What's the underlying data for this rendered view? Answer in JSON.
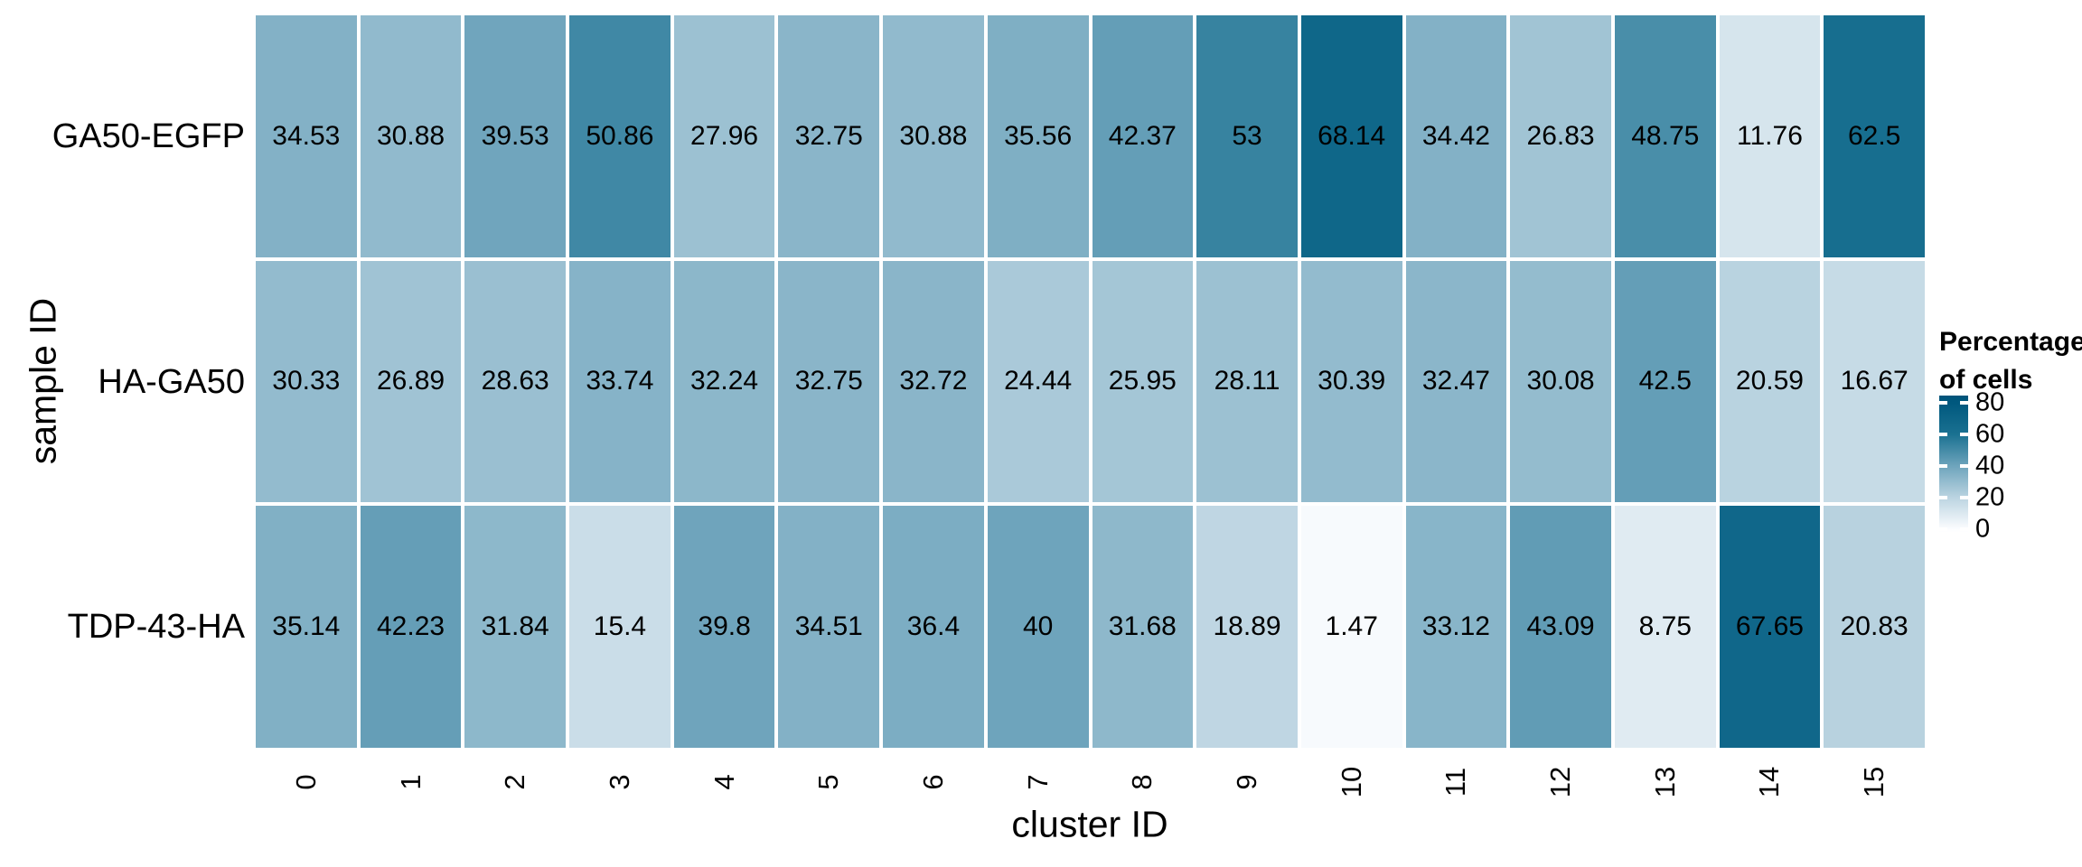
{
  "chart_data": {
    "type": "heatmap",
    "title": "",
    "xlabel": "cluster ID",
    "ylabel": "sample ID",
    "x_categories": [
      "0",
      "1",
      "2",
      "3",
      "4",
      "5",
      "6",
      "7",
      "8",
      "9",
      "10",
      "11",
      "12",
      "13",
      "14",
      "15"
    ],
    "y_categories": [
      "GA50-EGFP",
      "HA-GA50",
      "TDP-43-HA"
    ],
    "series": [
      {
        "name": "GA50-EGFP",
        "values": [
          34.53,
          30.88,
          39.53,
          50.86,
          27.96,
          32.75,
          30.88,
          35.56,
          42.37,
          53,
          68.14,
          34.42,
          26.83,
          48.75,
          11.76,
          62.5
        ]
      },
      {
        "name": "HA-GA50",
        "values": [
          30.33,
          26.89,
          28.63,
          33.74,
          32.24,
          32.75,
          32.72,
          24.44,
          25.95,
          28.11,
          30.39,
          32.47,
          30.08,
          42.5,
          20.59,
          16.67
        ]
      },
      {
        "name": "TDP-43-HA",
        "values": [
          35.14,
          42.23,
          31.84,
          15.4,
          39.8,
          34.51,
          36.4,
          40,
          31.68,
          18.89,
          1.47,
          33.12,
          43.09,
          8.75,
          67.65,
          20.83
        ]
      }
    ],
    "legend": {
      "title_line1": "Percentage",
      "title_line2": "of cells",
      "ticks": [
        80,
        60,
        40,
        20,
        0
      ],
      "position": "right"
    },
    "color_scale": {
      "domain": [
        0,
        20,
        40,
        60,
        80
      ],
      "colors": [
        "#fcfdff",
        "#bbd4e1",
        "#6ea4bc",
        "#1a7191",
        "#00587e"
      ]
    },
    "grid": false,
    "cell_gap_color": "#ffffff",
    "value_text_color": "#000000"
  }
}
